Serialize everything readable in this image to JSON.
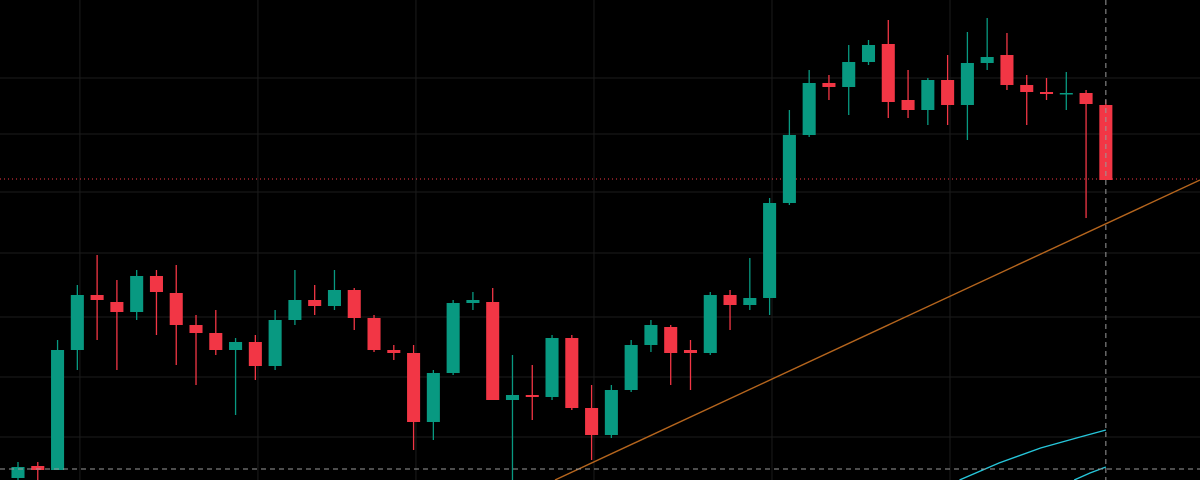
{
  "chart_data": {
    "type": "candlestick",
    "background": "#000000",
    "up_color": "#089981",
    "down_color": "#f23645",
    "grid": true,
    "grid_color": "#1c1c1c",
    "xlim": [
      -0.91,
      59.76
    ],
    "ylim": [
      0,
      480
    ],
    "xticks": [
      3.13,
      12.13,
      20.12,
      29.12,
      38.12,
      47.12
    ],
    "yticks": [
      43,
      103,
      163,
      227,
      288,
      346,
      402
    ],
    "x": [
      0,
      1,
      2,
      3,
      4,
      5,
      6,
      7,
      8,
      9,
      10,
      11,
      12,
      13,
      14,
      15,
      16,
      17,
      18,
      19,
      20,
      21,
      22,
      23,
      24,
      25,
      26,
      27,
      28,
      29,
      30,
      31,
      32,
      33,
      34,
      35,
      36,
      37,
      38,
      39,
      40,
      41,
      42,
      43,
      44,
      45,
      46,
      47,
      48,
      49,
      50,
      51,
      52,
      53,
      54,
      55
    ],
    "open": [
      2,
      14,
      10,
      130,
      185,
      178,
      168,
      204,
      187,
      155,
      147,
      130,
      138,
      114,
      160,
      180,
      174,
      190,
      162,
      130,
      127,
      58,
      107,
      177,
      178,
      80,
      85,
      83,
      142,
      72,
      45,
      90,
      135,
      153,
      130,
      127,
      185,
      175,
      182,
      277,
      345,
      397,
      393,
      418,
      436,
      380,
      370,
      400,
      375,
      417,
      425,
      395,
      388,
      386,
      387,
      375
    ],
    "high": [
      18,
      18,
      140,
      195,
      225,
      200,
      210,
      210,
      215,
      165,
      170,
      142,
      145,
      170,
      210,
      195,
      210,
      192,
      165,
      135,
      135,
      110,
      180,
      188,
      192,
      125,
      115,
      145,
      145,
      95,
      95,
      140,
      160,
      155,
      140,
      188,
      190,
      222,
      282,
      370,
      410,
      405,
      435,
      440,
      460,
      410,
      402,
      425,
      448,
      462,
      447,
      405,
      402,
      408,
      390,
      380
    ],
    "low": [
      0,
      0,
      10,
      110,
      140,
      110,
      160,
      145,
      115,
      95,
      125,
      65,
      100,
      110,
      155,
      165,
      170,
      150,
      128,
      120,
      30,
      40,
      105,
      170,
      80,
      0,
      60,
      80,
      70,
      20,
      42,
      88,
      128,
      95,
      90,
      125,
      150,
      170,
      165,
      275,
      343,
      380,
      365,
      415,
      362,
      362,
      355,
      355,
      340,
      410,
      390,
      355,
      380,
      370,
      262,
      300
    ],
    "close": [
      13,
      10,
      130,
      185,
      180,
      168,
      204,
      188,
      155,
      147,
      130,
      138,
      114,
      160,
      180,
      174,
      190,
      162,
      130,
      127,
      58,
      107,
      177,
      180,
      80,
      85,
      83,
      142,
      72,
      45,
      90,
      135,
      155,
      127,
      127,
      185,
      175,
      182,
      277,
      345,
      397,
      393,
      418,
      435,
      378,
      370,
      400,
      375,
      417,
      423,
      395,
      388,
      386,
      387,
      376,
      300
    ],
    "price_line": {
      "value": 301,
      "color": "#f23645"
    },
    "crosshair": {
      "x": 55,
      "y": 11,
      "color": "#9a9a9a"
    },
    "overlays": [
      {
        "color": "#b5651d",
        "x": [
          27.15,
          59.76
        ],
        "values": [
          0,
          300
        ]
      },
      {
        "color": "#26c6da",
        "x": [
          47.6,
          49.6,
          51.7,
          53.7,
          55
        ],
        "values": [
          0,
          17,
          32,
          43,
          50
        ]
      },
      {
        "color": "#26c6da",
        "x": [
          53.4,
          54.2,
          55
        ],
        "values": [
          0,
          7,
          13
        ]
      }
    ]
  }
}
